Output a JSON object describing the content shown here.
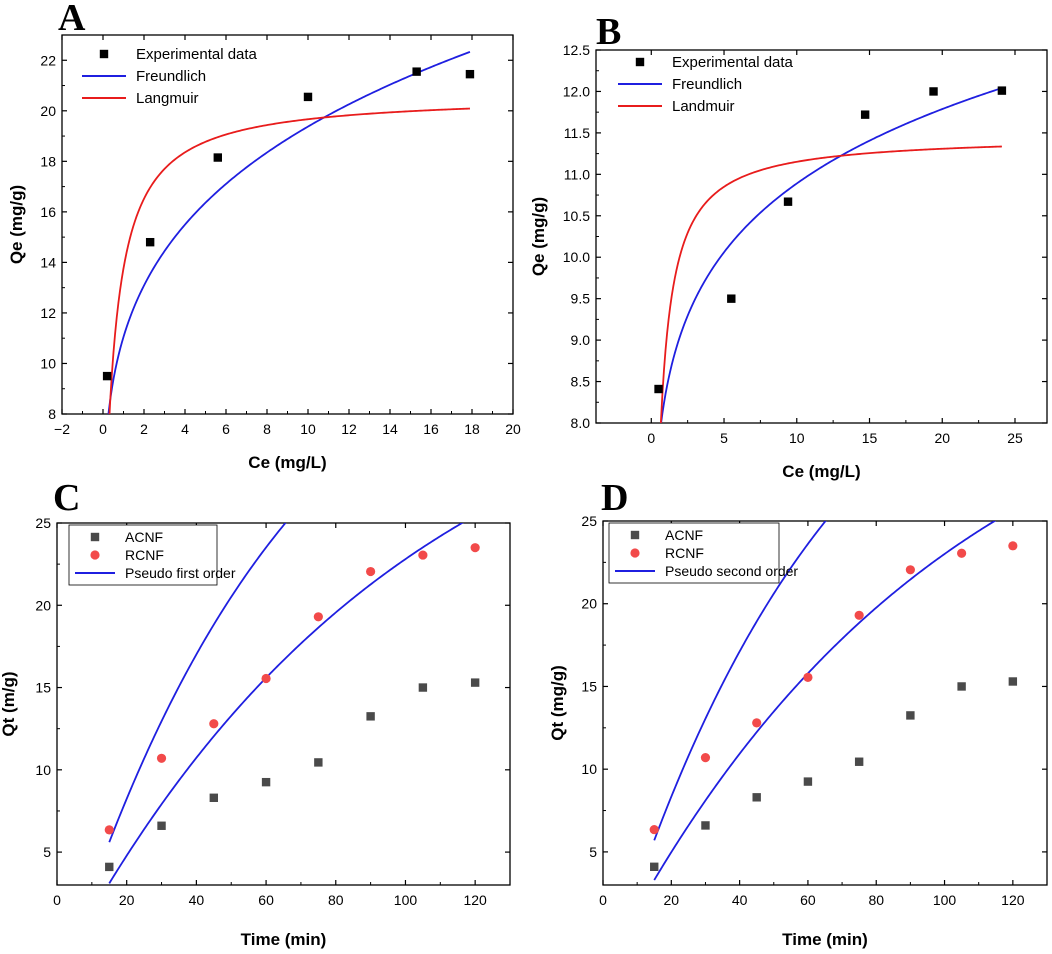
{
  "colors": {
    "blue": "#1f1fe0",
    "red": "#e81c1c",
    "black": "#000000",
    "gray": "#4a4a4a",
    "pink": "#f24a4a"
  },
  "chart_data": [
    {
      "id": "A",
      "panel_label": "A",
      "type": "scatter",
      "xlabel": "Ce (mg/L)",
      "ylabel": "Qe (mg/g)",
      "xlim": [
        -2,
        20
      ],
      "ylim": [
        8,
        23
      ],
      "xticks": [
        -2,
        0,
        2,
        4,
        6,
        8,
        10,
        12,
        14,
        16,
        18,
        20
      ],
      "xtick_labels": [
        "−2",
        "0",
        "2",
        "4",
        "6",
        "8",
        "10",
        "12",
        "14",
        "16",
        "18",
        "20"
      ],
      "yticks": [
        8,
        10,
        12,
        14,
        16,
        18,
        20,
        22
      ],
      "ytick_labels": [
        "8",
        "10",
        "12",
        "14",
        "16",
        "18",
        "20",
        "22"
      ],
      "legend_position": "top-left",
      "series": [
        {
          "name": "Experimental data",
          "kind": "points",
          "marker": "square",
          "color": "#000000",
          "x": [
            0.2,
            2.3,
            5.6,
            10.0,
            15.3,
            17.9
          ],
          "y": [
            9.5,
            14.8,
            18.15,
            20.55,
            21.55,
            21.45
          ]
        },
        {
          "name": "Freundlich",
          "kind": "line",
          "model": "freundlich",
          "color": "#1f1fe0",
          "params": {
            "K": 11.05,
            "n": 4.1
          },
          "x_range": [
            0.2,
            17.9
          ]
        },
        {
          "name": "Langmuir",
          "kind": "line",
          "model": "langmuir",
          "color": "#e81c1c",
          "params": {
            "qmax": 20.65,
            "KL": 2.0,
            "x0": 0.0
          },
          "x_range": [
            0.27,
            17.9
          ]
        }
      ]
    },
    {
      "id": "B",
      "panel_label": "B",
      "type": "scatter",
      "xlabel": "Ce (mg/L)",
      "ylabel": "Qe (mg/g)",
      "xlim": [
        -3.8,
        27.2
      ],
      "ylim": [
        8.0,
        12.5
      ],
      "xticks": [
        0,
        5,
        10,
        15,
        20,
        25
      ],
      "xtick_labels": [
        "0",
        "5",
        "10",
        "15",
        "20",
        "25"
      ],
      "yticks": [
        8.0,
        8.5,
        9.0,
        9.5,
        10.0,
        10.5,
        11.0,
        11.5,
        12.0,
        12.5
      ],
      "ytick_labels": [
        "8.0",
        "8.5",
        "9.0",
        "9.5",
        "10.0",
        "10.5",
        "11.0",
        "11.5",
        "12.0",
        "12.5"
      ],
      "legend_position": "top-left",
      "series": [
        {
          "name": "Experimental data",
          "kind": "points",
          "marker": "square",
          "color": "#000000",
          "x": [
            0.5,
            5.5,
            9.4,
            14.7,
            19.4,
            24.1
          ],
          "y": [
            8.41,
            9.5,
            10.67,
            11.72,
            12.0,
            12.01
          ]
        },
        {
          "name": "Freundlich",
          "kind": "line",
          "model": "freundlich",
          "color": "#1f1fe0",
          "params": {
            "K": 8.37,
            "n": 8.75
          },
          "x_range": [
            0.55,
            24.1
          ]
        },
        {
          "name": "Landmuir",
          "kind": "line",
          "model": "langmuir",
          "color": "#e81c1c",
          "params": {
            "qmax": 11.47,
            "KL": 3.5,
            "x0": 0.0
          },
          "x_range": [
            0.55,
            24.1
          ]
        }
      ]
    },
    {
      "id": "C",
      "panel_label": "C",
      "type": "scatter",
      "xlabel": "Time (min)",
      "ylabel": "Qt (m/g)",
      "xlim": [
        0,
        130
      ],
      "ylim": [
        3,
        25
      ],
      "xticks": [
        0,
        20,
        40,
        60,
        80,
        100,
        120
      ],
      "xtick_labels": [
        "0",
        "20",
        "40",
        "60",
        "80",
        "100",
        "120"
      ],
      "yticks": [
        5,
        10,
        15,
        20,
        25
      ],
      "ytick_labels": [
        "5",
        "10",
        "15",
        "20",
        "25"
      ],
      "legend_position": "top-left",
      "series": [
        {
          "name": "ACNF",
          "kind": "points",
          "marker": "square",
          "color": "#4a4a4a",
          "x": [
            15,
            30,
            45,
            60,
            75,
            90,
            105,
            120
          ],
          "y": [
            4.1,
            6.6,
            8.3,
            9.25,
            10.45,
            13.25,
            15.0,
            15.3
          ]
        },
        {
          "name": "RCNF",
          "kind": "points",
          "marker": "circle",
          "color": "#f24a4a",
          "x": [
            15,
            30,
            45,
            60,
            75,
            90,
            105,
            120
          ],
          "y": [
            6.35,
            10.7,
            12.8,
            15.55,
            19.3,
            22.05,
            23.05,
            23.5
          ]
        },
        {
          "name": "Pseudo first order",
          "kind": "line",
          "model": "kinetic",
          "color": "#1f1fe0",
          "params": {
            "qe": 34.2,
            "k": 0.0101,
            "offset": 15
          },
          "base": 3.1,
          "x_range": [
            15,
            120
          ]
        },
        {
          "name": "",
          "kind": "line",
          "model": "kinetic",
          "color": "#1f1fe0",
          "params": {
            "qe": 36.5,
            "k": 0.015,
            "offset": 15
          },
          "base": 5.6,
          "x_range": [
            15,
            120
          ]
        }
      ]
    },
    {
      "id": "D",
      "panel_label": "D",
      "type": "scatter",
      "xlabel": "Time (min)",
      "ylabel": "Qt (mg/g)",
      "xlim": [
        0,
        130
      ],
      "ylim": [
        3,
        25
      ],
      "xticks": [
        0,
        20,
        40,
        60,
        80,
        100,
        120
      ],
      "xtick_labels": [
        "0",
        "20",
        "40",
        "60",
        "80",
        "100",
        "120"
      ],
      "yticks": [
        5,
        10,
        15,
        20,
        25
      ],
      "ytick_labels": [
        "5",
        "10",
        "15",
        "20",
        "25"
      ],
      "legend_position": "top-left",
      "series": [
        {
          "name": "ACNF",
          "kind": "points",
          "marker": "square",
          "color": "#4a4a4a",
          "x": [
            15,
            30,
            45,
            60,
            75,
            90,
            105,
            120
          ],
          "y": [
            4.1,
            6.6,
            8.3,
            9.25,
            10.45,
            13.25,
            15.0,
            15.3
          ]
        },
        {
          "name": "RCNF",
          "kind": "points",
          "marker": "circle",
          "color": "#f24a4a",
          "x": [
            15,
            30,
            45,
            60,
            75,
            90,
            105,
            120
          ],
          "y": [
            6.35,
            10.7,
            12.8,
            15.55,
            19.3,
            22.05,
            23.05,
            23.5
          ]
        },
        {
          "name": "Pseudo second order",
          "kind": "line",
          "model": "kinetic",
          "color": "#1f1fe0",
          "params": {
            "qe": 34.2,
            "k": 0.0101,
            "offset": 15
          },
          "base": 3.3,
          "x_range": [
            15,
            120
          ]
        },
        {
          "name": "",
          "kind": "line",
          "model": "kinetic",
          "color": "#1f1fe0",
          "params": {
            "qe": 36.5,
            "k": 0.015,
            "offset": 15
          },
          "base": 5.7,
          "x_range": [
            15,
            120
          ]
        }
      ]
    }
  ]
}
